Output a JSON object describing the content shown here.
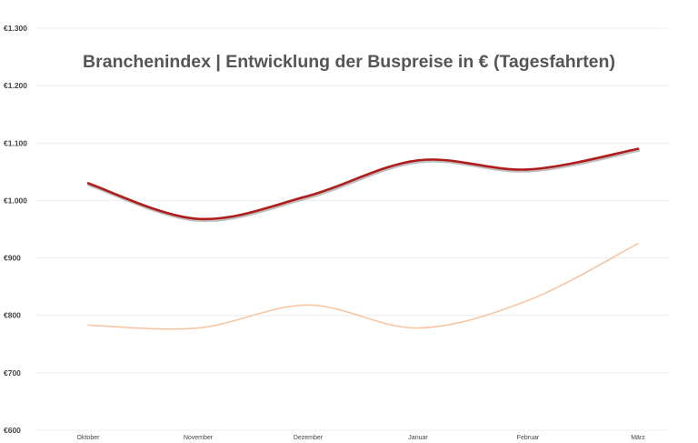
{
  "chart_data": {
    "type": "line",
    "title": "Branchenindex | Entwicklung der Buspreise in € (Tagesfahrten)",
    "xlabel": "",
    "ylabel": "",
    "categories": [
      "Oktober",
      "November",
      "Dezember",
      "Januar",
      "Februar",
      "März"
    ],
    "ylim": [
      600,
      1300
    ],
    "yticks": [
      600,
      700,
      800,
      900,
      1000,
      1100,
      1200,
      1300
    ],
    "ytick_labels": [
      "€600",
      "€700",
      "€800",
      "€900",
      "€1.000",
      "€1.100",
      "€1.200",
      "€1.300"
    ],
    "grid": true,
    "legend": "none",
    "series": [
      {
        "values": [
          1030,
          968,
          1008,
          1070,
          1054,
          1090
        ],
        "color": "#b01c1c",
        "shadow": "#8a8a8a",
        "weight": "thick"
      },
      {
        "values": [
          783,
          778,
          818,
          778,
          826,
          925
        ],
        "color": "#f7c6a3",
        "weight": "thin"
      }
    ]
  }
}
